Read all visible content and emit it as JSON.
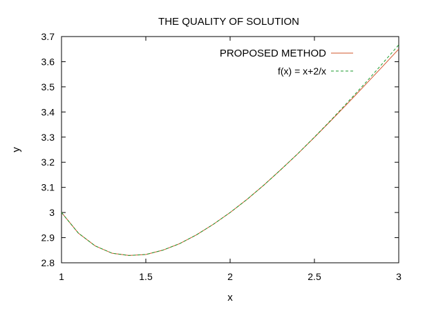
{
  "chart_data": {
    "type": "line",
    "title": "THE QUALITY OF SOLUTION",
    "xlabel": "x",
    "ylabel": "y",
    "xlim": [
      1,
      3
    ],
    "ylim": [
      2.8,
      3.7
    ],
    "xticks": [
      1,
      1.5,
      2,
      2.5,
      3
    ],
    "xtick_labels": [
      "1",
      "1.5",
      "2",
      "2.5",
      "3"
    ],
    "yticks": [
      2.8,
      2.9,
      3.0,
      3.1,
      3.2,
      3.3,
      3.4,
      3.5,
      3.6,
      3.7
    ],
    "ytick_labels": [
      "2.8",
      "2.9",
      "3",
      "3.1",
      "3.2",
      "3.3",
      "3.4",
      "3.5",
      "3.6",
      "3.7"
    ],
    "grid": false,
    "legend_position": "top-right",
    "series": [
      {
        "name": "PROPOSED METHOD",
        "color": "#d2542a",
        "style": "solid",
        "x": [
          1.0,
          1.1,
          1.2,
          1.3,
          1.4,
          1.5,
          1.6,
          1.7,
          1.8,
          1.9,
          2.0,
          2.1,
          2.2,
          2.3,
          2.4,
          2.5,
          2.6,
          2.7,
          2.8,
          2.9,
          3.0
        ],
        "y": [
          3.0,
          2.918,
          2.867,
          2.838,
          2.829,
          2.833,
          2.85,
          2.876,
          2.911,
          2.953,
          3.0,
          3.052,
          3.109,
          3.17,
          3.233,
          3.299,
          3.367,
          3.436,
          3.507,
          3.578,
          3.65
        ]
      },
      {
        "name": "f(x) = x+2/x",
        "color": "#1a9a2a",
        "style": "dashed",
        "x": [
          1.0,
          1.1,
          1.2,
          1.3,
          1.4,
          1.5,
          1.6,
          1.7,
          1.8,
          1.9,
          2.0,
          2.1,
          2.2,
          2.3,
          2.4,
          2.5,
          2.6,
          2.7,
          2.8,
          2.9,
          3.0
        ],
        "y": [
          3.0,
          2.918,
          2.867,
          2.838,
          2.829,
          2.833,
          2.85,
          2.876,
          2.911,
          2.953,
          3.0,
          3.052,
          3.109,
          3.17,
          3.233,
          3.3,
          3.369,
          3.441,
          3.514,
          3.59,
          3.667
        ]
      }
    ]
  }
}
